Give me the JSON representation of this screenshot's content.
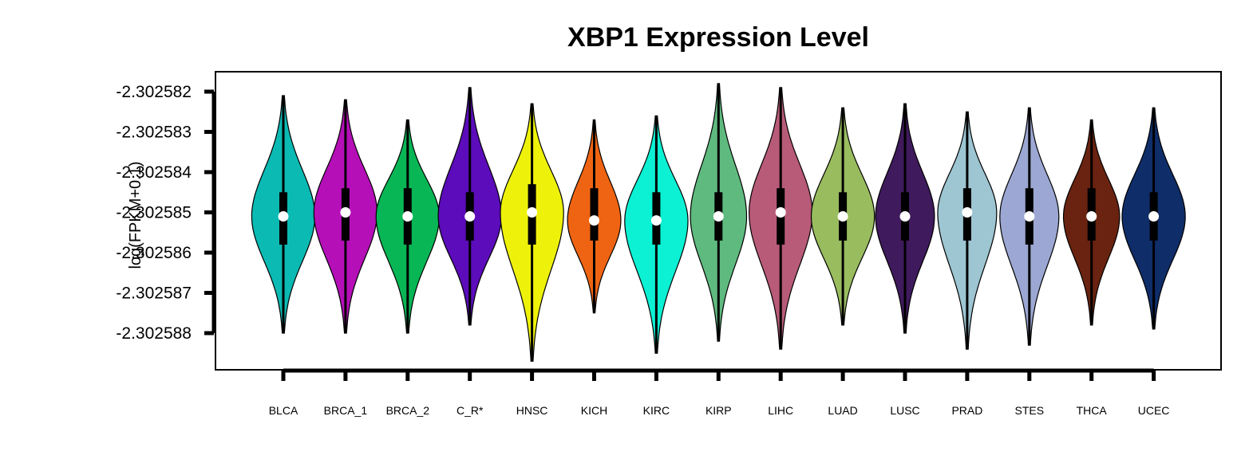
{
  "chart_data": {
    "type": "violin",
    "title": "XBP1 Expression Level",
    "xlabel": "",
    "ylabel": "log(FPKM+0.1)",
    "ylim": [
      -2.3025885,
      -2.3025815
    ],
    "y_ticks": [
      -2.302582,
      -2.302583,
      -2.302584,
      -2.302585,
      -2.302586,
      -2.302587,
      -2.302588
    ],
    "y_tick_labels": [
      "-2.302582",
      "-2.302583",
      "-2.302584",
      "-2.302585",
      "-2.302586",
      "-2.302587",
      "-2.302588"
    ],
    "categories": [
      "BLCA",
      "BRCA_1",
      "BRCA_2",
      "C_R*",
      "HNSC",
      "KICH",
      "KIRC",
      "KIRP",
      "LIHC",
      "LUAD",
      "LUSC",
      "PRAD",
      "STES",
      "THCA",
      "UCEC"
    ],
    "series": [
      {
        "name": "BLCA",
        "color": "#0bbab3",
        "min": -2.302588,
        "max": -2.3025821,
        "q1": -2.3025858,
        "median": -2.3025851,
        "q3": -2.3025845,
        "halfwidth": 0.45
      },
      {
        "name": "BRCA_1",
        "color": "#b50fb8",
        "min": -2.302588,
        "max": -2.3025822,
        "q1": -2.3025857,
        "median": -2.302585,
        "q3": -2.3025844,
        "halfwidth": 0.45
      },
      {
        "name": "BRCA_2",
        "color": "#09b655",
        "min": -2.302588,
        "max": -2.3025827,
        "q1": -2.3025858,
        "median": -2.3025851,
        "q3": -2.3025844,
        "halfwidth": 0.45
      },
      {
        "name": "C_R*",
        "color": "#5c0cba",
        "min": -2.3025878,
        "max": -2.3025819,
        "q1": -2.3025857,
        "median": -2.3025851,
        "q3": -2.3025845,
        "halfwidth": 0.45
      },
      {
        "name": "HNSC",
        "color": "#eef20a",
        "min": -2.3025887,
        "max": -2.3025823,
        "q1": -2.3025858,
        "median": -2.302585,
        "q3": -2.3025843,
        "halfwidth": 0.45
      },
      {
        "name": "KICH",
        "color": "#ef6412",
        "min": -2.3025875,
        "max": -2.3025827,
        "q1": -2.3025857,
        "median": -2.3025852,
        "q3": -2.3025844,
        "halfwidth": 0.38
      },
      {
        "name": "KIRC",
        "color": "#0cf0d3",
        "min": -2.3025885,
        "max": -2.3025826,
        "q1": -2.3025858,
        "median": -2.3025852,
        "q3": -2.3025845,
        "halfwidth": 0.45
      },
      {
        "name": "KIRP",
        "color": "#5fba7f",
        "min": -2.3025882,
        "max": -2.3025818,
        "q1": -2.3025857,
        "median": -2.3025851,
        "q3": -2.3025845,
        "halfwidth": 0.4
      },
      {
        "name": "LIHC",
        "color": "#b85b78",
        "min": -2.3025884,
        "max": -2.3025819,
        "q1": -2.3025858,
        "median": -2.302585,
        "q3": -2.3025844,
        "halfwidth": 0.45
      },
      {
        "name": "LUAD",
        "color": "#99bc5f",
        "min": -2.3025878,
        "max": -2.3025824,
        "q1": -2.3025857,
        "median": -2.3025851,
        "q3": -2.3025845,
        "halfwidth": 0.45
      },
      {
        "name": "LUSC",
        "color": "#3f1a5c",
        "min": -2.302588,
        "max": -2.3025823,
        "q1": -2.3025857,
        "median": -2.3025851,
        "q3": -2.3025845,
        "halfwidth": 0.42
      },
      {
        "name": "PRAD",
        "color": "#9dc5d2",
        "min": -2.3025884,
        "max": -2.3025825,
        "q1": -2.3025857,
        "median": -2.302585,
        "q3": -2.3025844,
        "halfwidth": 0.42
      },
      {
        "name": "STES",
        "color": "#9ca8d3",
        "min": -2.3025883,
        "max": -2.3025824,
        "q1": -2.3025858,
        "median": -2.3025851,
        "q3": -2.3025844,
        "halfwidth": 0.42
      },
      {
        "name": "THCA",
        "color": "#692310",
        "min": -2.3025878,
        "max": -2.3025827,
        "q1": -2.3025857,
        "median": -2.3025851,
        "q3": -2.3025844,
        "halfwidth": 0.4
      },
      {
        "name": "UCEC",
        "color": "#0f2d68",
        "min": -2.3025879,
        "max": -2.3025824,
        "q1": -2.3025857,
        "median": -2.3025851,
        "q3": -2.3025845,
        "halfwidth": 0.45
      }
    ]
  }
}
